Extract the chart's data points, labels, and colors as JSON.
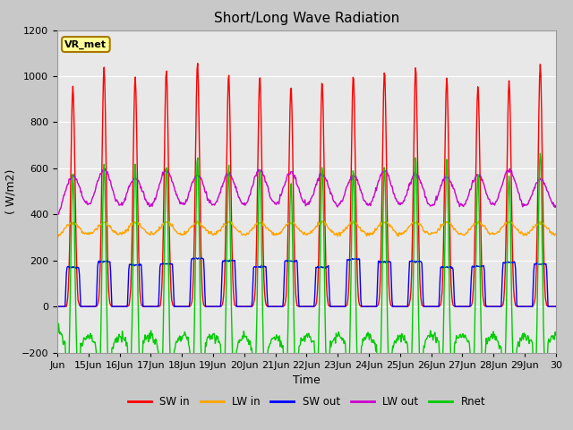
{
  "title": "Short/Long Wave Radiation",
  "xlabel": "Time",
  "ylabel": "( W/m2)",
  "ylim": [
    -200,
    1200
  ],
  "yticks": [
    -200,
    0,
    200,
    400,
    600,
    800,
    1000,
    1200
  ],
  "xtick_labels": [
    "Jun",
    "15Jun",
    "16Jun",
    "17Jun",
    "18Jun",
    "19Jun",
    "20Jun",
    "21Jun",
    "22Jun",
    "23Jun",
    "24Jun",
    "25Jun",
    "26Jun",
    "27Jun",
    "28Jun",
    "29Jun",
    "30"
  ],
  "station_label": "VR_met",
  "colors": {
    "SW_in": "#ff0000",
    "LW_in": "#ffa500",
    "SW_out": "#0000ff",
    "LW_out": "#cc00cc",
    "Rnet": "#00cc00"
  },
  "legend_labels": [
    "SW in",
    "LW in",
    "SW out",
    "LW out",
    "Rnet"
  ],
  "fig_facecolor": "#c8c8c8",
  "plot_bg_color": "#e8e8e8",
  "grid_color": "#ffffff",
  "title_fontsize": 11,
  "label_fontsize": 9,
  "tick_fontsize": 8
}
